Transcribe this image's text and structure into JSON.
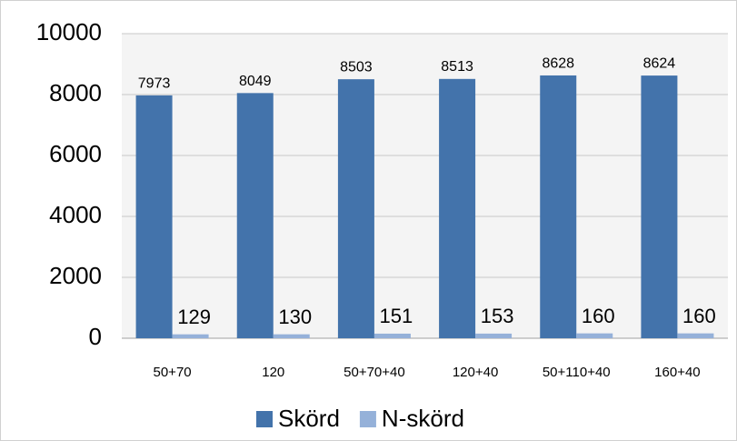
{
  "chart_data": {
    "type": "bar",
    "categories": [
      "50+70",
      "120",
      "50+70+40",
      "120+40",
      "50+110+40",
      "160+40"
    ],
    "series": [
      {
        "name": "Skörd",
        "color": "#4373ab",
        "values": [
          7973,
          8049,
          8503,
          8513,
          8628,
          8624
        ]
      },
      {
        "name": "N-skörd",
        "color": "#95b1d9",
        "values": [
          129,
          130,
          151,
          153,
          160,
          160
        ]
      }
    ],
    "ylim": [
      0,
      10000
    ],
    "yticks": [
      0,
      2000,
      4000,
      6000,
      8000,
      10000
    ],
    "grid": true,
    "legend": "bottom"
  }
}
